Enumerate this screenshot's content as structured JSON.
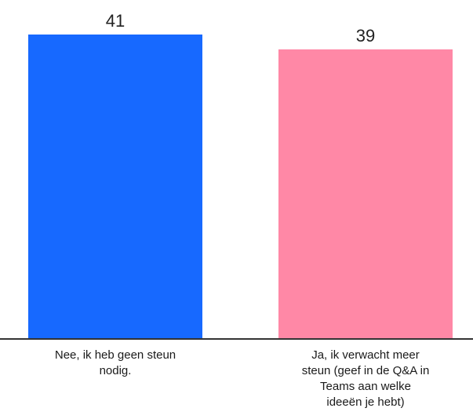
{
  "chart_data": {
    "type": "bar",
    "categories": [
      "Nee, ik heb geen steun nodig.",
      "Ja, ik verwacht meer steun (geef in de Q&A in Teams aan welke ideeën je hebt)"
    ],
    "category_lines": [
      [
        "Nee, ik heb geen steun",
        "nodig."
      ],
      [
        "Ja, ik verwacht meer",
        "steun (geef in de Q&A in",
        "Teams aan welke",
        "ideeën je hebt)"
      ]
    ],
    "values": [
      41,
      39
    ],
    "value_labels": [
      "41",
      "39"
    ],
    "colors": [
      "#1769ff",
      "#ff88a6"
    ],
    "axis_color": "#333333",
    "ylim": [
      0,
      41
    ],
    "grid": false,
    "title": "",
    "xlabel": "",
    "ylabel": ""
  }
}
